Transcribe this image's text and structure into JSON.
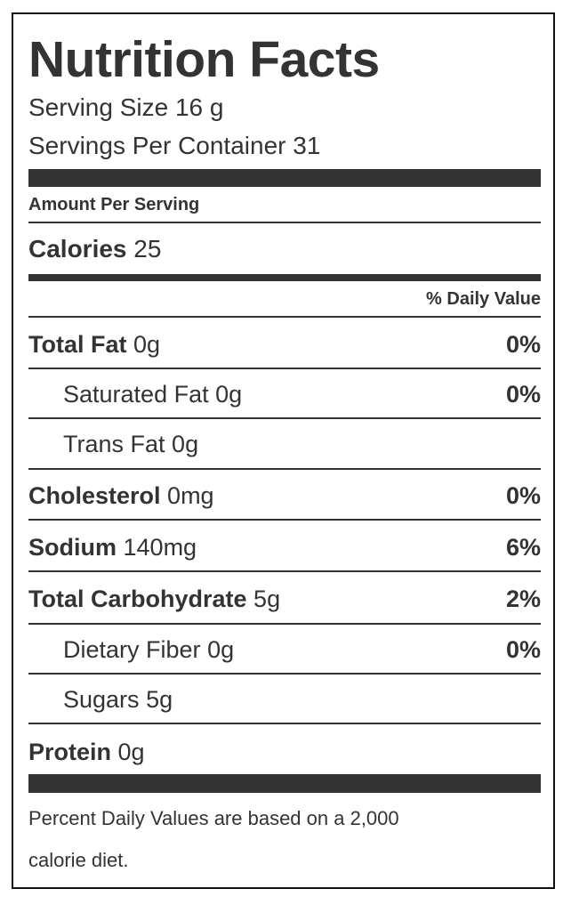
{
  "title": "Nutrition Facts",
  "serving_size": "Serving Size 16 g",
  "servings_per_container": "Servings Per Container 31",
  "amount_per_serving": "Amount Per Serving",
  "calories": {
    "label": "Calories",
    "value": "25"
  },
  "daily_value_header": "% Daily Value",
  "nutrients": [
    {
      "label": "Total Fat",
      "amount": "0g",
      "dv": "0%"
    },
    {
      "label": "Saturated Fat",
      "amount": "0g",
      "dv": "0%"
    },
    {
      "label": "Trans Fat",
      "amount": "0g",
      "dv": ""
    },
    {
      "label": "Cholesterol",
      "amount": "0mg",
      "dv": "0%"
    },
    {
      "label": "Sodium",
      "amount": "140mg",
      "dv": "6%"
    },
    {
      "label": "Total Carbohydrate",
      "amount": "5g",
      "dv": "2%"
    },
    {
      "label": "Dietary Fiber",
      "amount": "0g",
      "dv": "0%"
    },
    {
      "label": "Sugars",
      "amount": "5g",
      "dv": ""
    },
    {
      "label": "Protein",
      "amount": "0g",
      "dv": ""
    }
  ],
  "footnote_line1": "Percent Daily Values are based on a 2,000",
  "footnote_line2": "calorie diet."
}
